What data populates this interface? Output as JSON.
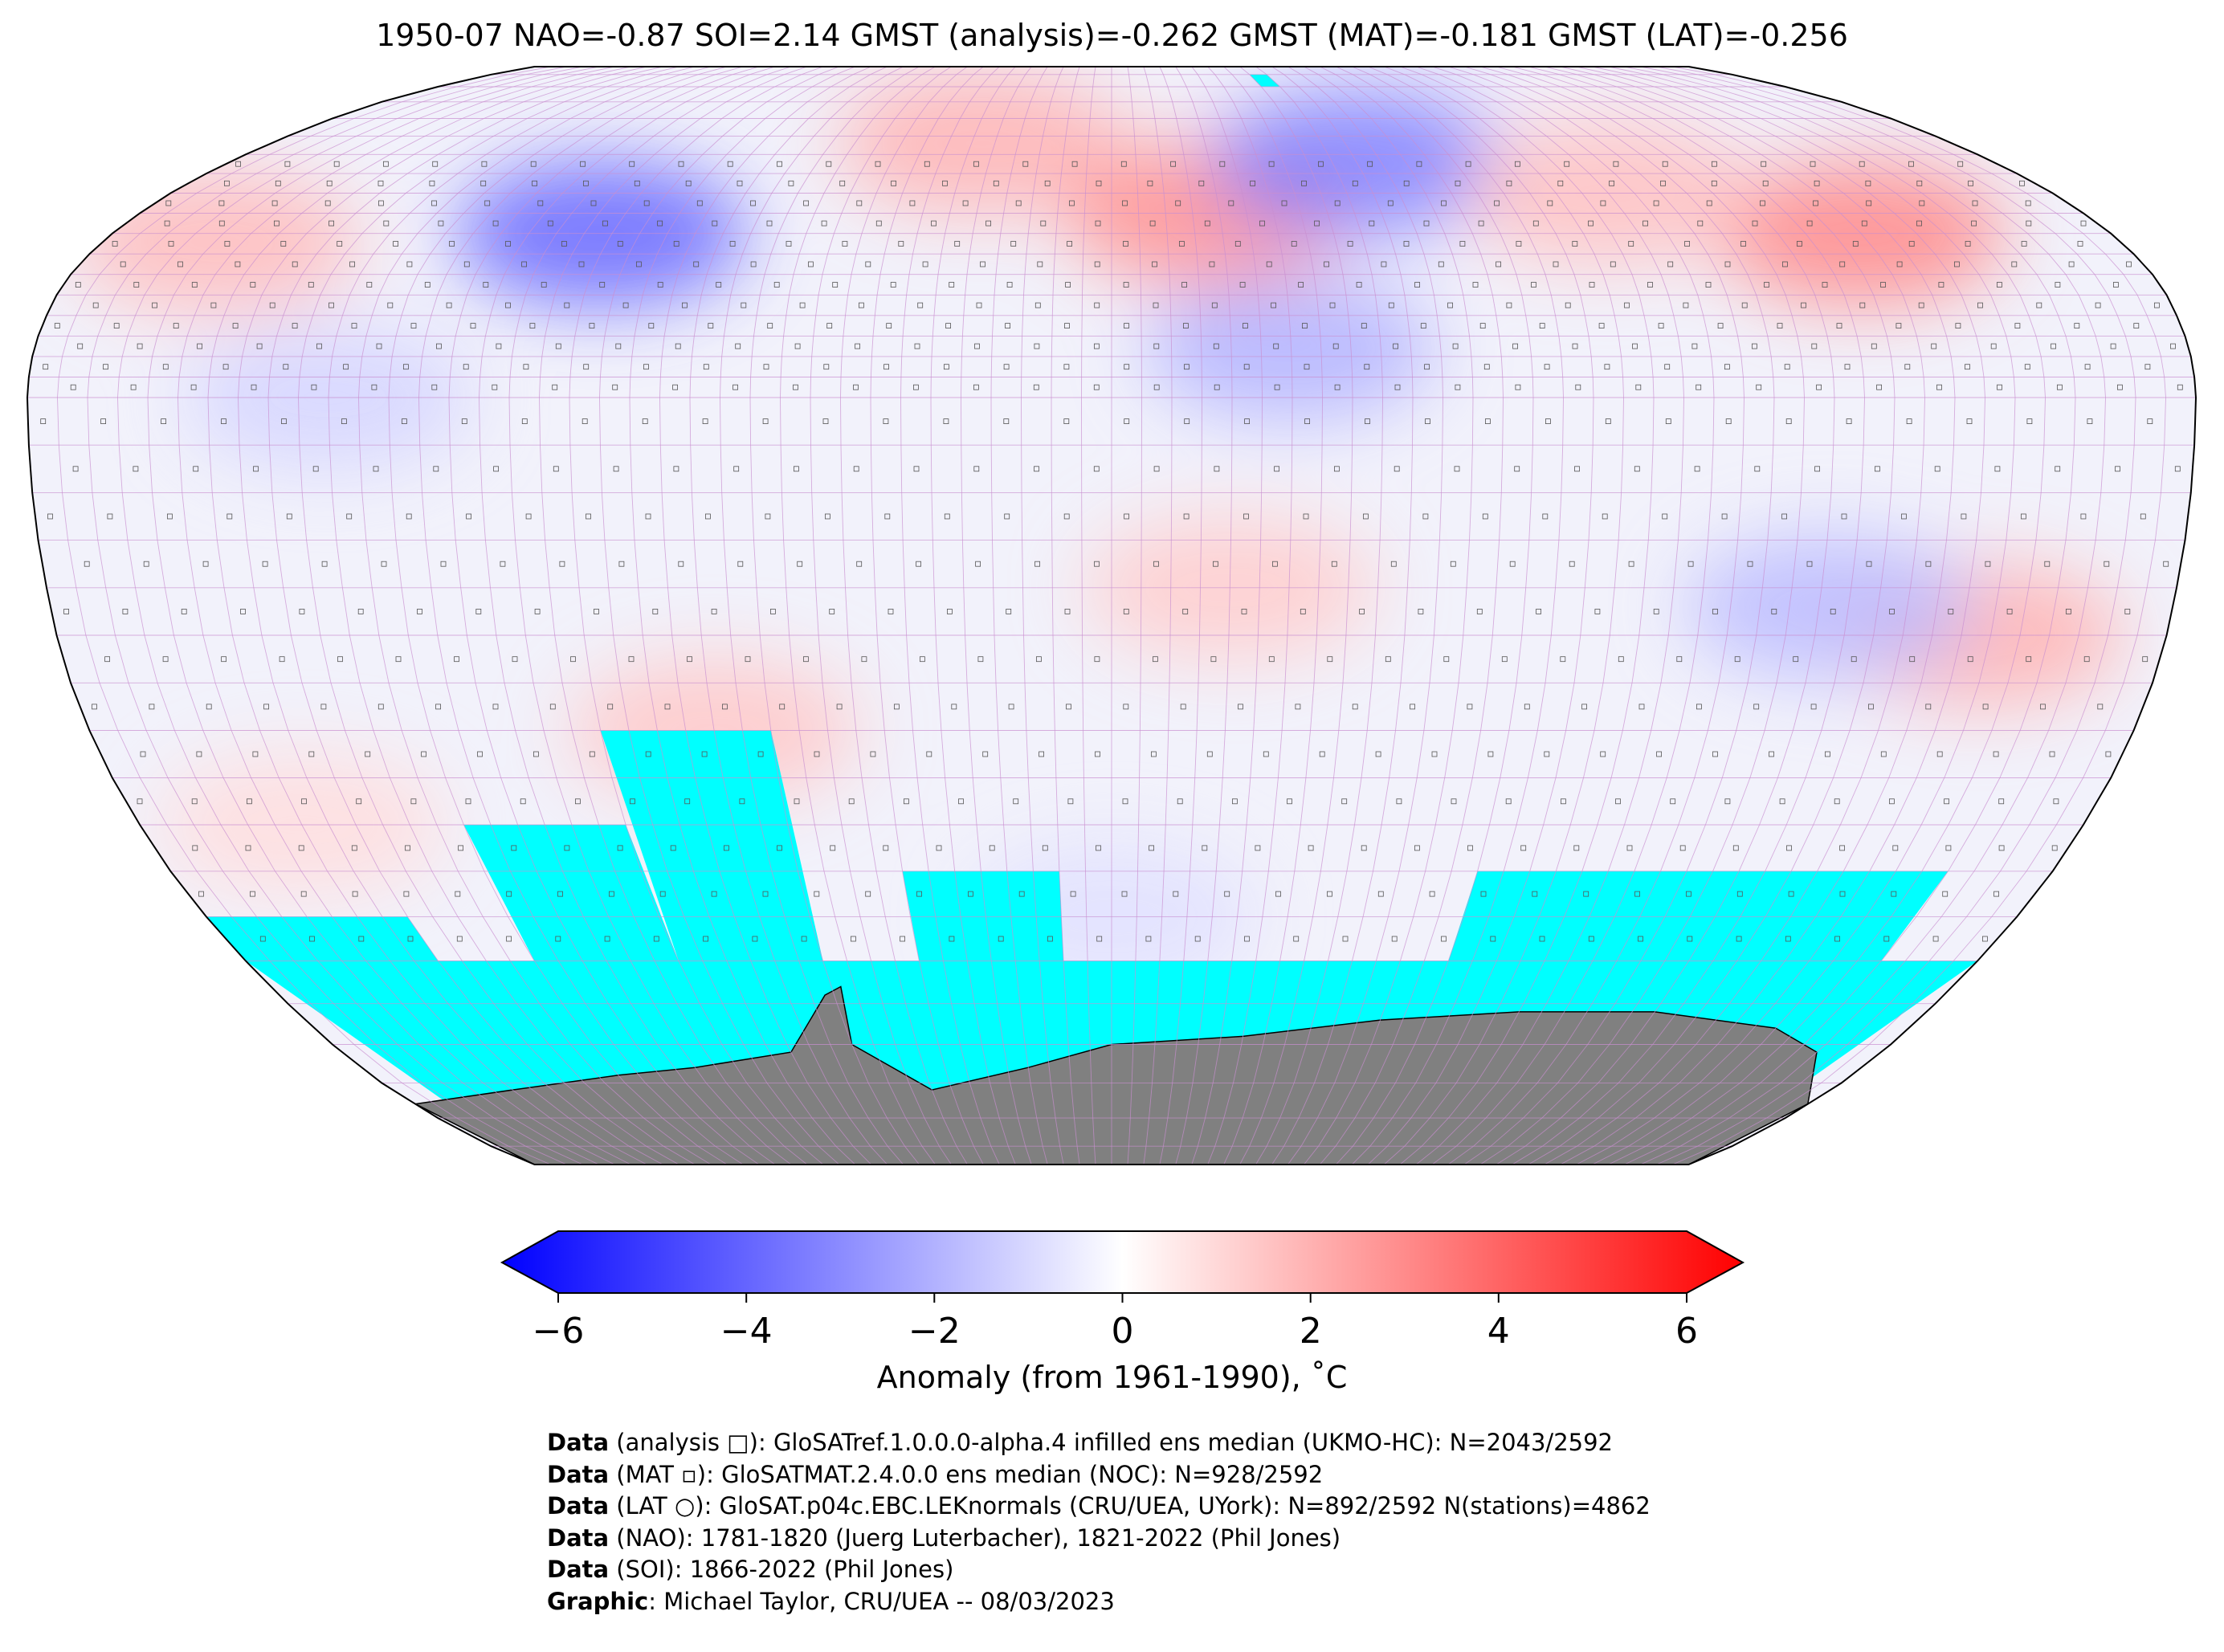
{
  "title": "1950-07 NAO=-0.87 SOI=2.14 GMST (analysis)=-0.262 GMST (MAT)=-0.181 GMST (LAT)=-0.256",
  "colors": {
    "cold": "#0000ff",
    "neutral": "#ffffff",
    "warm": "#ff0000",
    "no_data": "#00ffff",
    "land_mask": "#808080",
    "grid": "#c98fd0"
  },
  "colorbar": {
    "min": -6,
    "max": 6,
    "ticks": [
      "−6",
      "−4",
      "−2",
      "0",
      "2",
      "4",
      "6"
    ],
    "tick_values": [
      -6,
      -4,
      -2,
      0,
      2,
      4,
      6
    ],
    "label": "Anomaly (from 1961-1990), ˚C"
  },
  "anomaly_regions": [
    {
      "region": "central-north-america",
      "lon": -92,
      "lat": 40,
      "value": -3.6
    },
    {
      "region": "north-pacific",
      "lon": -160,
      "lat": 38,
      "value": 1.6
    },
    {
      "region": "north-atlantic",
      "lon": -28,
      "lat": 63,
      "value": 1.8
    },
    {
      "region": "central-europe",
      "lon": 18,
      "lat": 45,
      "value": 2.6
    },
    {
      "region": "western-russia",
      "lon": 50,
      "lat": 58,
      "value": -3.0
    },
    {
      "region": "east-asia",
      "lon": 135,
      "lat": 40,
      "value": 2.8
    },
    {
      "region": "central-asia",
      "lon": 95,
      "lat": 50,
      "value": 1.5
    },
    {
      "region": "north-africa-sahel",
      "lon": 30,
      "lat": 12,
      "value": -1.8
    },
    {
      "region": "eastern-australia",
      "lon": 148,
      "lat": -25,
      "value": 1.8
    },
    {
      "region": "western-australia",
      "lon": 122,
      "lat": -22,
      "value": -1.6
    },
    {
      "region": "southern-africa",
      "lon": 20,
      "lat": -20,
      "value": 1.2
    },
    {
      "region": "patagonia",
      "lon": -70,
      "lat": -35,
      "value": 1.3
    },
    {
      "region": "southern-ocean-west",
      "lon": -150,
      "lat": -45,
      "value": 0.8
    },
    {
      "region": "southern-ocean-central",
      "lon": 0,
      "lat": -55,
      "value": -0.7
    },
    {
      "region": "tropical-pacific",
      "lon": -130,
      "lat": 0,
      "value": -1.0
    }
  ],
  "no_data_cells": [
    {
      "lon_from": -180,
      "lon_to": 180,
      "lat_from": -90,
      "lat_to": -60
    },
    {
      "lon_from": -90,
      "lon_to": -60,
      "lat_from": -60,
      "lat_to": -35
    },
    {
      "lon_from": -120,
      "lon_to": -90,
      "lat_from": -60,
      "lat_to": -45
    },
    {
      "lon_from": -40,
      "lon_to": -10,
      "lat_from": -60,
      "lat_to": -50
    },
    {
      "lon_from": 70,
      "lon_to": 160,
      "lat_from": -60,
      "lat_to": -50
    },
    {
      "lon_from": -180,
      "lon_to": -140,
      "lat_from": -60,
      "lat_to": -55
    },
    {
      "lon_from": 40,
      "lon_to": 45,
      "lat_from": 80,
      "lat_to": 85
    }
  ],
  "credits": [
    {
      "bold": "Data",
      "text": " (analysis □): GloSATref.1.0.0.0-alpha.4 infilled ens median (UKMO-HC): N=2043/2592"
    },
    {
      "bold": "Data",
      "text": " (MAT ▫): GloSATMAT.2.4.0.0 ens median (NOC): N=928/2592"
    },
    {
      "bold": "Data",
      "text": " (LAT ○): GloSAT.p04c.EBC.LEKnormals (CRU/UEA, UYork): N=892/2592 N(stations)=4862"
    },
    {
      "bold": "Data",
      "text": " (NAO): 1781-1820 (Juerg Luterbacher), 1821-2022 (Phil Jones)"
    },
    {
      "bold": "Data",
      "text": " (SOI): 1866-2022 (Phil Jones)"
    },
    {
      "bold": "Graphic",
      "text": ": Michael Taylor, CRU/UEA -- 08/03/2023"
    }
  ]
}
